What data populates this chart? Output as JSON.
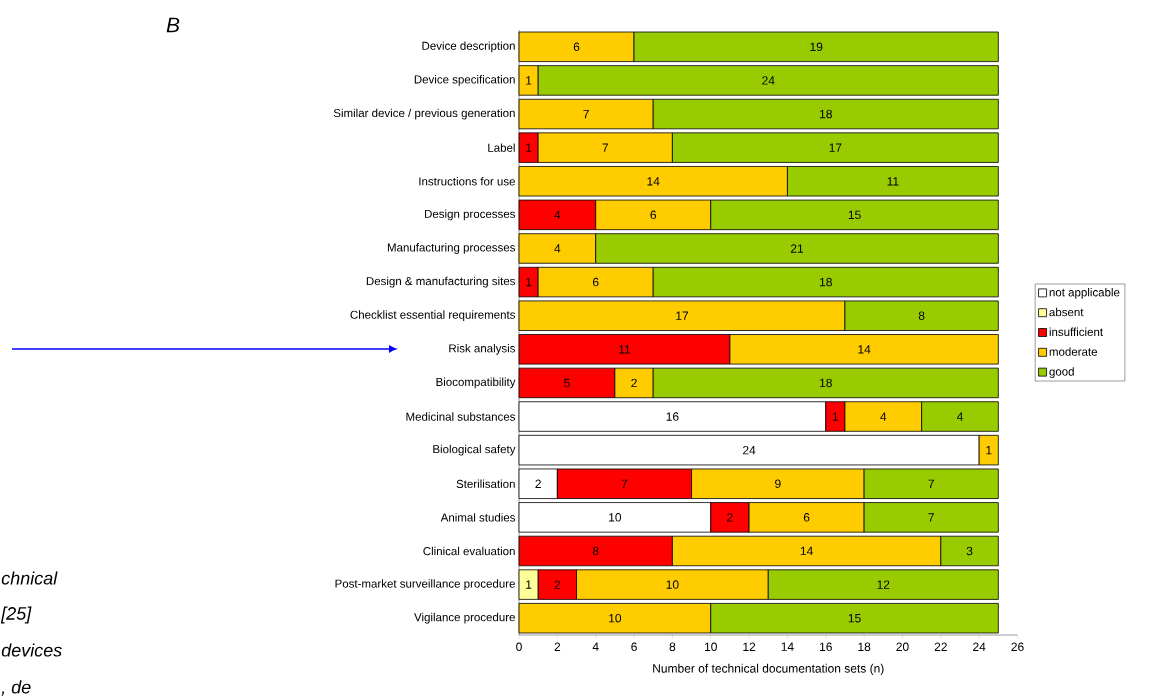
{
  "chart_data": {
    "type": "bar",
    "orientation": "horizontal",
    "stacked": true,
    "title": "B",
    "categories": [
      "Device description",
      "Device specification",
      "Similar device / previous generation",
      "Label",
      "Instructions for use",
      "Design processes",
      "Manufacturing processes",
      "Design & manufacturing sites",
      "Checklist essential requirements",
      "Risk analysis",
      "Biocompatibility",
      "Medicinal substances",
      "Biological safety",
      "Sterilisation",
      "Animal studies",
      "Clinical evaluation",
      "Post-market surveillance procedure",
      "Vigilance procedure"
    ],
    "series": [
      {
        "name": "not applicable",
        "color": "#ffffff",
        "values": [
          null,
          null,
          null,
          null,
          null,
          null,
          null,
          null,
          null,
          null,
          null,
          16,
          24,
          2,
          10,
          null,
          null,
          null
        ]
      },
      {
        "name": "absent",
        "color": "#ffff99",
        "values": [
          null,
          null,
          null,
          null,
          null,
          null,
          null,
          null,
          null,
          null,
          null,
          null,
          null,
          null,
          null,
          null,
          1,
          null
        ]
      },
      {
        "name": "insufficient",
        "color": "#ff0000",
        "values": [
          null,
          null,
          null,
          1,
          null,
          4,
          null,
          1,
          null,
          11,
          5,
          1,
          null,
          7,
          2,
          8,
          2,
          null
        ]
      },
      {
        "name": "moderate",
        "color": "#ffcc00",
        "values": [
          6,
          1,
          7,
          7,
          14,
          6,
          4,
          6,
          17,
          14,
          2,
          4,
          1,
          9,
          6,
          14,
          10,
          10
        ]
      },
      {
        "name": "good",
        "color": "#99cc00",
        "values": [
          19,
          24,
          18,
          17,
          11,
          15,
          21,
          18,
          8,
          null,
          18,
          4,
          null,
          7,
          7,
          3,
          12,
          15
        ]
      }
    ],
    "xlabel": "Number of technical documentation sets (n)",
    "xlim": [
      0,
      26
    ],
    "xticks": [
      0,
      2,
      4,
      6,
      8,
      10,
      12,
      14,
      16,
      18,
      20,
      22,
      24,
      26
    ],
    "data_labels": true,
    "legend": "right",
    "grid": false,
    "annotations": [
      "chnical",
      "[25]",
      "devices",
      ", de"
    ]
  }
}
